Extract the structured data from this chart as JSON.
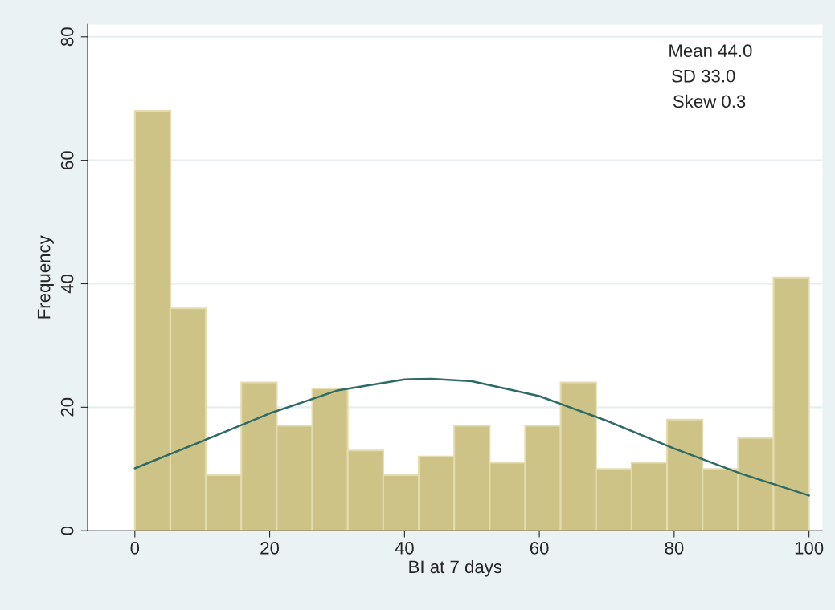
{
  "chart_data": {
    "type": "histogram",
    "xlabel": "BI at 7 days",
    "ylabel": "Frequency",
    "bins": [
      0,
      5.263,
      10.526,
      15.789,
      21.053,
      26.316,
      31.579,
      36.842,
      42.105,
      47.368,
      52.632,
      57.895,
      63.158,
      68.421,
      73.684,
      78.947,
      84.211,
      89.474,
      94.737,
      100
    ],
    "values": [
      68,
      36,
      9,
      24,
      17,
      23,
      13,
      9,
      12,
      17,
      11,
      17,
      24,
      10,
      11,
      18,
      10,
      15,
      41
    ],
    "color": "#cdc386",
    "series": [
      {
        "type": "line",
        "color": "#2e6b66",
        "x": [
          0,
          10,
          20,
          30,
          40,
          44,
          50,
          60,
          70,
          80,
          90,
          100
        ],
        "values": [
          10.1,
          14.5,
          19.0,
          22.7,
          24.5,
          24.6,
          24.2,
          21.8,
          17.8,
          13.3,
          9.2,
          5.7
        ]
      }
    ],
    "annotations": [
      "Mean 44.0",
      "SD 33.0",
      "Skew 0.3"
    ],
    "xlim": [
      -7,
      102
    ],
    "ylim": [
      0,
      82
    ],
    "xticks": [
      0,
      20,
      40,
      60,
      80,
      100
    ],
    "yticks": [
      0,
      20,
      40,
      60,
      80
    ],
    "grid": "y",
    "legend": false
  }
}
